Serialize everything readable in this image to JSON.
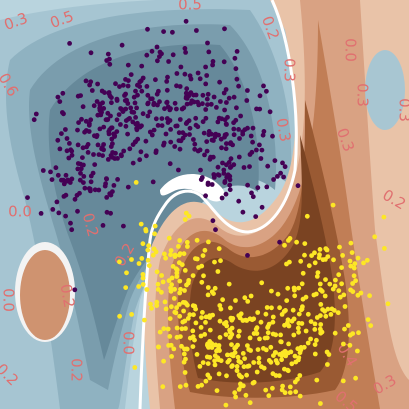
{
  "chart_data": {
    "type": "scatter",
    "title": "",
    "xlabel": "",
    "ylabel": "",
    "xlim": [
      -1.8,
      2.8
    ],
    "ylim": [
      -1.3,
      1.6
    ],
    "grid": false,
    "background": "filled decision-function contours (diverging blue-brown)",
    "contour_colors": {
      "low": "#5a7d8c",
      "mid_low": "#a9c8d4",
      "boundary": "#ffffff",
      "mid_high": "#c98a62",
      "high": "#7a4322"
    },
    "contour_labels": [
      {
        "text": "0.3"
      },
      {
        "text": "0.5"
      },
      {
        "text": "0.5"
      },
      {
        "text": "0.6"
      },
      {
        "text": "0.2"
      },
      {
        "text": "0.3"
      },
      {
        "text": "0.0"
      },
      {
        "text": "0.3"
      },
      {
        "text": "0.3"
      },
      {
        "text": "0.0"
      },
      {
        "text": "0.3"
      },
      {
        "text": "0.2"
      },
      {
        "text": "0.3"
      },
      {
        "text": "0.0"
      },
      {
        "text": "0.2"
      },
      {
        "text": "0.2"
      },
      {
        "text": "0.0"
      },
      {
        "text": "0.2"
      },
      {
        "text": "0.4"
      },
      {
        "text": "0.3"
      },
      {
        "text": "0.5"
      },
      {
        "text": "0.2"
      },
      {
        "text": "0.2"
      }
    ],
    "series": [
      {
        "class": 0,
        "color": "#440154",
        "count": 500,
        "shape": "upper half-moon",
        "center": [
          0.0,
          0.25
        ],
        "radius": 1.0,
        "noise": 0.3
      },
      {
        "class": 1,
        "color": "#fde725",
        "count": 500,
        "shape": "lower half-moon",
        "center": [
          1.0,
          -0.25
        ],
        "radius": 1.0,
        "noise": 0.3
      }
    ]
  }
}
